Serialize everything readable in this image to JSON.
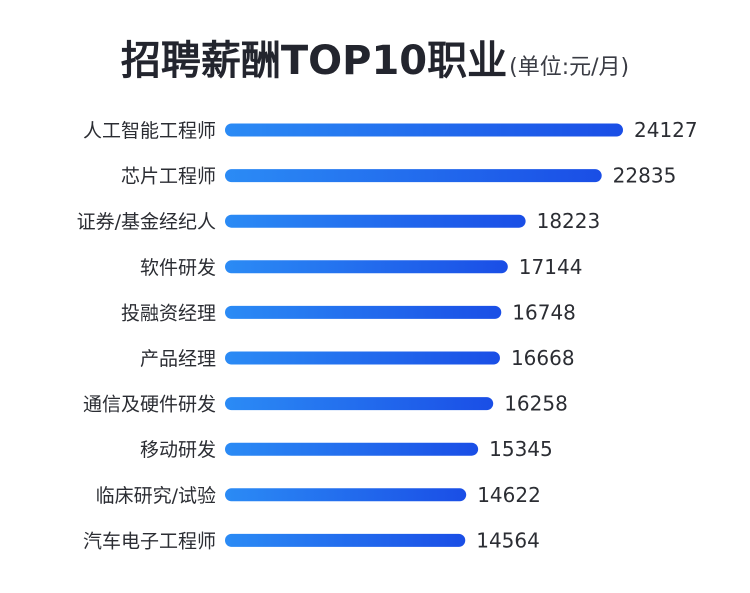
{
  "chart_data": {
    "type": "bar",
    "orientation": "horizontal",
    "title": "招聘薪酬TOP10职业",
    "subtitle": "(单位:元/月)",
    "categories": [
      "人工智能工程师",
      "芯片工程师",
      "证券/基金经纪人",
      "软件研发",
      "投融资经理",
      "产品经理",
      "通信及硬件研发",
      "移动研发",
      "临床研究/试验",
      "汽车电子工程师"
    ],
    "values": [
      24127,
      22835,
      18223,
      17144,
      16748,
      16668,
      16258,
      15345,
      14622,
      14564
    ],
    "xlim": [
      0,
      24127
    ],
    "grid": false,
    "colors": {
      "bar_start": "#2b8bf5",
      "bar_end": "#1a4ee6"
    }
  }
}
